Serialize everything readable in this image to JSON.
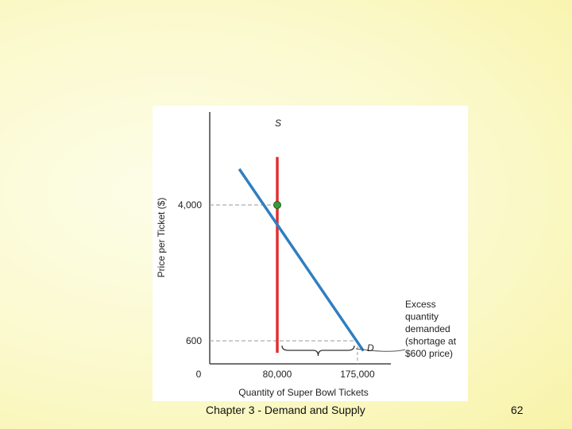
{
  "footer": {
    "text": "Chapter 3 - Demand and Supply",
    "slide_number": "62"
  },
  "chart_data": {
    "type": "line",
    "xlabel": "Quantity of Super Bowl Tickets",
    "ylabel": "Price per Ticket ($)",
    "origin_label": "0",
    "x_ticks": [
      {
        "value": 80000,
        "label": "80,000"
      },
      {
        "value": 175000,
        "label": "175,000"
      }
    ],
    "y_ticks": [
      {
        "value": 4000,
        "label": "4,000"
      },
      {
        "value": 600,
        "label": "600"
      }
    ],
    "series": [
      {
        "name": "S",
        "color": "#e03030",
        "points": [
          [
            80000,
            300
          ],
          [
            80000,
            5200
          ]
        ]
      },
      {
        "name": "D",
        "color": "#2f7fc0",
        "points": [
          [
            35000,
            4900
          ],
          [
            182000,
            350
          ]
        ]
      }
    ],
    "equilibrium_point": {
      "x": 80000,
      "y": 4000,
      "color": "#3a9a3a"
    },
    "annotation": {
      "lines": [
        "Excess",
        "quantity",
        "demanded",
        "(shortage at",
        "$600 price)"
      ],
      "brace_from": 80000,
      "brace_to": 175000
    },
    "grid": false
  }
}
